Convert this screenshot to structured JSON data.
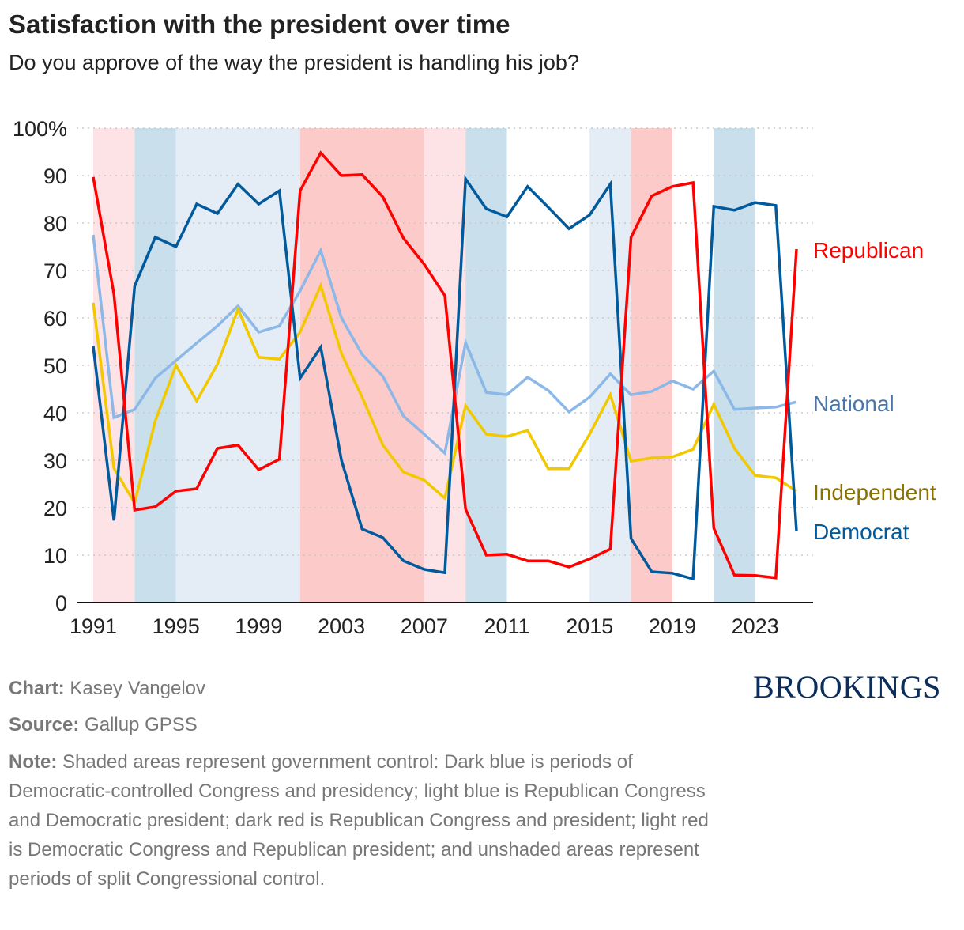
{
  "title": "Satisfaction with the president over time",
  "subtitle": "Do you approve of the way the president is handling his job?",
  "footer": {
    "chart_label": "Chart:",
    "chart_value": "Kasey Vangelov",
    "source_label": "Source:",
    "source_value": "Gallup GPSS",
    "note_label": "Note:",
    "note_value": "Shaded areas represent government control: Dark blue is periods of Democratic-controlled Congress and presidency; light blue is Republican Congress and Democratic president; dark red is Republican Congress and president; light red is Democratic Congress and Republican president; and unshaded areas represent periods of split Congressional control.",
    "logo": "BROOKINGS"
  },
  "chart_data": {
    "type": "line",
    "ylim": [
      0,
      100
    ],
    "yticks": [
      "0",
      "10",
      "20",
      "30",
      "40",
      "50",
      "60",
      "70",
      "80",
      "90",
      "100%"
    ],
    "xticks": [
      "1991",
      "1995",
      "1999",
      "2003",
      "2007",
      "2011",
      "2015",
      "2019",
      "2023"
    ],
    "grid": "horizontal dotted",
    "legend": "direct labels at right",
    "x": [
      1991,
      1992,
      1993,
      1994,
      1995,
      1996,
      1997,
      1998,
      1999,
      2000,
      2001,
      2002,
      2003,
      2004,
      2005,
      2006,
      2007,
      2008,
      2009,
      2010,
      2011,
      2012,
      2013,
      2014,
      2015,
      2016,
      2017,
      2018,
      2019,
      2020,
      2021,
      2022,
      2023,
      2024,
      2025
    ],
    "series": [
      {
        "name": "National",
        "color": "#8cb8e8",
        "label_color": "#4a76a8",
        "values": [
          77.5,
          39,
          40.7,
          47.3,
          51,
          54.7,
          58.3,
          62.5,
          57,
          58.3,
          65.7,
          74.2,
          60,
          52.3,
          47.7,
          39.3,
          35.5,
          31.5,
          54.8,
          44.3,
          43.8,
          47.5,
          44.7,
          40.2,
          43.3,
          48.2,
          43.8,
          44.5,
          46.7,
          45,
          48.8,
          40.7,
          41,
          41.2,
          42.3
        ]
      },
      {
        "name": "Independent",
        "color": "#f2c800",
        "label_color": "#8a7200",
        "values": [
          63.2,
          28.3,
          21,
          38.3,
          50,
          42.5,
          50.2,
          61.8,
          51.7,
          51.3,
          57,
          66.8,
          52.5,
          43.3,
          33.2,
          27.5,
          25.8,
          22,
          41.5,
          35.5,
          35,
          36.3,
          28.2,
          28.2,
          35.5,
          43.8,
          29.8,
          30.5,
          30.7,
          32.3,
          41.8,
          32.5,
          26.8,
          26.3,
          23.5
        ]
      },
      {
        "name": "Democrat",
        "color": "#005a9c",
        "label_color": "#005a9c",
        "values": [
          54,
          17.3,
          66.7,
          77,
          75,
          84,
          82,
          88.2,
          84,
          86.8,
          47.3,
          53.8,
          30,
          15.5,
          13.7,
          8.8,
          7,
          6.3,
          89.3,
          83,
          81.3,
          87.7,
          83.3,
          78.8,
          81.7,
          88.2,
          13.5,
          6.5,
          6.2,
          5,
          83.5,
          82.7,
          84.3,
          83.7,
          15
        ]
      },
      {
        "name": "Republican",
        "color": "#ff0000",
        "label_color": "#ff0000",
        "values": [
          89.7,
          65,
          19.5,
          20.2,
          23.5,
          24,
          32.5,
          33.2,
          28,
          30.2,
          86.8,
          94.8,
          90,
          90.2,
          85.5,
          76.8,
          71.3,
          64.7,
          19.7,
          10,
          10.2,
          8.8,
          8.8,
          7.5,
          9.2,
          11.3,
          77,
          85.7,
          87.7,
          88.5,
          15.7,
          5.8,
          5.7,
          5.2,
          74.5
        ]
      }
    ],
    "shading": [
      {
        "from": 1991,
        "to": 1993,
        "control": "light red",
        "color": "#fde3e5"
      },
      {
        "from": 1993,
        "to": 1995,
        "control": "dark blue",
        "color": "#cadfec"
      },
      {
        "from": 1995,
        "to": 2001,
        "control": "light blue",
        "color": "#e4edf5"
      },
      {
        "from": 2001,
        "to": 2007,
        "control": "dark red",
        "color": "#fdcaca"
      },
      {
        "from": 2007,
        "to": 2009,
        "control": "light red",
        "color": "#fde3e5"
      },
      {
        "from": 2009,
        "to": 2011,
        "control": "dark blue",
        "color": "#cadfec"
      },
      {
        "from": 2015,
        "to": 2017,
        "control": "light blue",
        "color": "#e4edf5"
      },
      {
        "from": 2017,
        "to": 2019,
        "control": "dark red",
        "color": "#fdcaca"
      },
      {
        "from": 2021,
        "to": 2023,
        "control": "dark blue",
        "color": "#cadfec"
      }
    ]
  }
}
